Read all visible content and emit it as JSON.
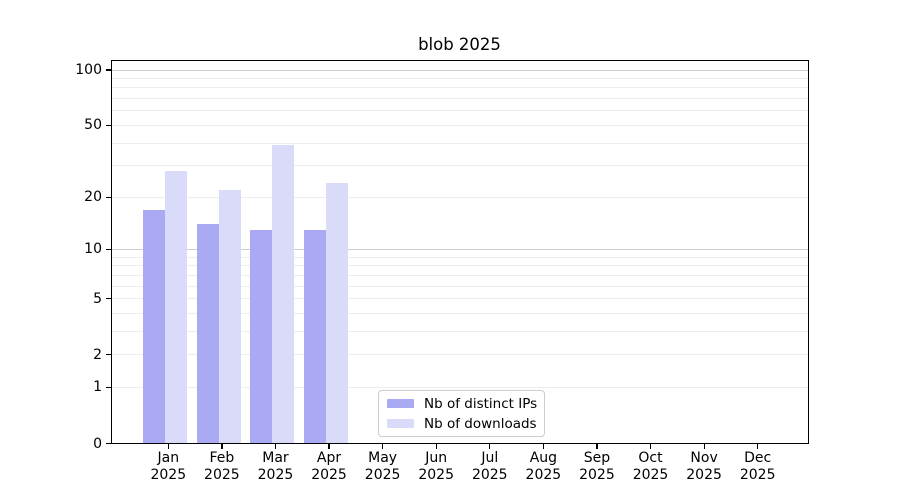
{
  "window": {
    "background": "#ffffff"
  },
  "chart_data": {
    "type": "bar",
    "title": "blob 2025",
    "categories": [
      "Jan",
      "Feb",
      "Mar",
      "Apr",
      "May",
      "Jun",
      "Jul",
      "Aug",
      "Sep",
      "Oct",
      "Nov",
      "Dec"
    ],
    "x_tick_second_line": "2025",
    "series": [
      {
        "name": "Nb of distinct IPs",
        "color": "#a9a9f4",
        "values": [
          17,
          14,
          13,
          13,
          0,
          0,
          0,
          0,
          0,
          0,
          0,
          0
        ]
      },
      {
        "name": "Nb of downloads",
        "color": "#dadaf9",
        "values": [
          28,
          22,
          39,
          24,
          0,
          0,
          0,
          0,
          0,
          0,
          0,
          0
        ]
      }
    ],
    "y_axis": {
      "scale": "log1p",
      "tick_values": [
        100,
        50,
        20,
        10,
        5,
        2,
        1,
        0
      ],
      "tick_labels": [
        "100",
        "50",
        "20",
        "10",
        "5",
        "2",
        "1",
        "0"
      ],
      "major_gridline_values": [
        100,
        10
      ],
      "minor_gridline_values": [
        90,
        80,
        70,
        60,
        50,
        40,
        30,
        20,
        9,
        8,
        7,
        6,
        5,
        4,
        3,
        2,
        1
      ],
      "ylim": [
        0,
        113
      ]
    },
    "legend": {
      "position": "inside-bottom-center"
    },
    "grid": true
  },
  "colors": {
    "grid_minor": "#ededed",
    "grid_major": "#cecece",
    "axis": "#000000",
    "legend_border": "#cccccc",
    "text": "#000000"
  }
}
